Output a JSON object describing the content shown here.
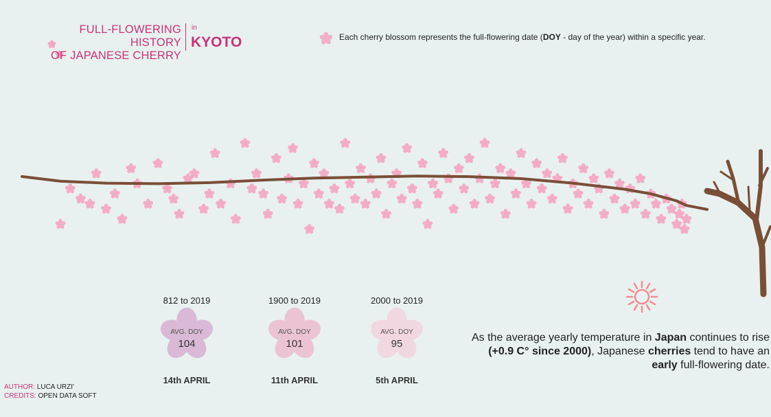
{
  "title": {
    "line1": "FULL-FLOWERING HISTORY",
    "line2": "OF JAPANESE CHERRY",
    "in": "in",
    "city": "KYOTO"
  },
  "legend": {
    "prefix": "Each cherry blossom represents the full-flowering date (",
    "bold": "DOY",
    "suffix": " - day of the year) within a specific year."
  },
  "stats": [
    {
      "range": "812 to 2019",
      "label": "AVG. DOY",
      "value": "104",
      "date": "14th APRIL",
      "color": "#d9b9d5"
    },
    {
      "range": "1900 to 2019",
      "label": "AVG. DOY",
      "value": "101",
      "date": "11th APRIL",
      "color": "#ebc3d5"
    },
    {
      "range": "2000 to 2019",
      "label": "AVG. DOY",
      "value": "95",
      "date": "5th APRIL",
      "color": "#f1d8e0"
    }
  ],
  "note": {
    "p1": "As the average yearly temperature in ",
    "b1": "Japan",
    "p2": " continues to rise ",
    "b2": "(+0.9 C° since 2000)",
    "p3": ", Japanese ",
    "b3": "cherries",
    "p4": " tend to have an ",
    "b4": "early",
    "p5": " full-flowering date."
  },
  "credits": {
    "author_key": "AUTHOR:",
    "author_val": "LUCA URZI'",
    "credits_key": "CREDITS:",
    "credits_val": "OPEN DATA SOFT"
  },
  "colors": {
    "accent": "#c8327a",
    "blossom": "#f7a1c0",
    "branch": "#7a4e36",
    "sun": "#f48a92"
  },
  "chart_data": {
    "type": "scatter",
    "xlim": [
      812,
      2019
    ],
    "ylim": [
      86,
      124
    ],
    "grid": false,
    "trend_line": {
      "x": [
        812,
        900,
        1000,
        1100,
        1200,
        1300,
        1400,
        1500,
        1600,
        1700,
        1800,
        1900,
        1950,
        2000,
        2019
      ],
      "y": [
        104.5,
        104.1,
        104.0,
        104.2,
        104.7,
        105.1,
        105.3,
        105.5,
        105.4,
        105.0,
        104.1,
        102.9,
        102.0,
        100.6,
        99.7
      ]
    },
    "series": [
      {
        "x": [
          812,
          831,
          851,
          869,
          881,
          900,
          917,
          931,
          948,
          960,
          981,
          1000,
          1018,
          1030,
          1041,
          1058,
          1070,
          1088,
          1099,
          1110,
          1121,
          1140,
          1150,
          1168,
          1181,
          1190,
          1203,
          1212,
          1228,
          1239,
          1252,
          1260,
          1270,
          1281,
          1292,
          1301,
          1310,
          1320,
          1330,
          1340,
          1350,
          1361,
          1370,
          1380,
          1391,
          1400,
          1410,
          1421,
          1430,
          1440,
          1451,
          1460,
          1470,
          1480,
          1490,
          1500,
          1510,
          1520,
          1530,
          1540,
          1550,
          1560,
          1570,
          1580,
          1590,
          1600,
          1610,
          1620,
          1630,
          1640,
          1650,
          1660,
          1670,
          1680,
          1690,
          1700,
          1710,
          1720,
          1730,
          1740,
          1750,
          1760,
          1770,
          1780,
          1790,
          1800,
          1810,
          1820,
          1830,
          1840,
          1850,
          1860,
          1870,
          1880,
          1890,
          1900,
          1910,
          1920,
          1930,
          1940,
          1950,
          1960,
          1970,
          1980,
          1990,
          2000,
          2005,
          2010,
          2015,
          2019
        ],
        "y": [
          96,
          103,
          101,
          100,
          106,
          99,
          102,
          97,
          107,
          104,
          100,
          108,
          103,
          101,
          98,
          105,
          106,
          99,
          102,
          110,
          100,
          104,
          97,
          112,
          103,
          106,
          102,
          98,
          109,
          101,
          105,
          111,
          100,
          104,
          95,
          108,
          102,
          106,
          100,
          103,
          99,
          112,
          104,
          101,
          107,
          100,
          105,
          102,
          109,
          98,
          104,
          106,
          101,
          111,
          103,
          100,
          108,
          96,
          104,
          102,
          110,
          105,
          99,
          107,
          103,
          109,
          100,
          105,
          112,
          101,
          104,
          107,
          98,
          106,
          102,
          110,
          104,
          100,
          108,
          103,
          106,
          101,
          105,
          109,
          99,
          104,
          102,
          107,
          100,
          105,
          103,
          98,
          106,
          101,
          104,
          99,
          103,
          100,
          105,
          98,
          102,
          100,
          97,
          101,
          99,
          96,
          98,
          100,
          95,
          97
        ]
      }
    ],
    "annotation": "Each cherry blossom represents the full-flowering date (DOY - day of the year) within a specific year."
  }
}
